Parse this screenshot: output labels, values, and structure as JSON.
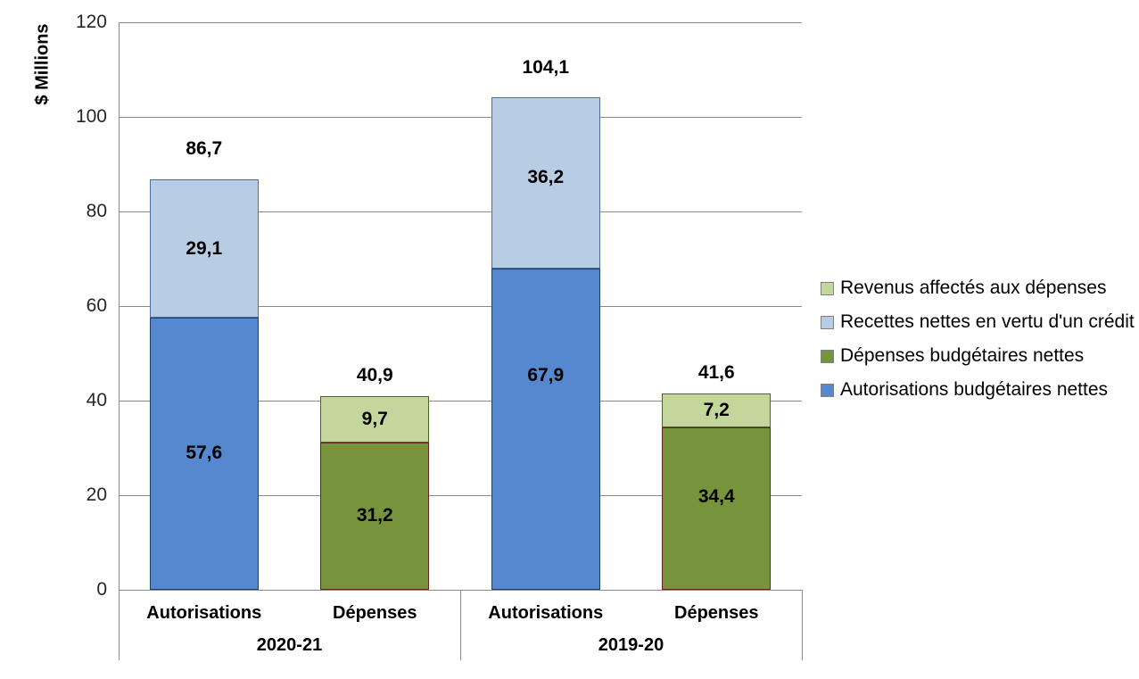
{
  "chart_data": {
    "type": "bar",
    "stacked": true,
    "ylabel": "$ Millions",
    "ylim": [
      0,
      120
    ],
    "yticks": [
      0,
      20,
      40,
      60,
      80,
      100,
      120
    ],
    "grid": true,
    "legend_position": "right",
    "groups": [
      {
        "label": "2020-21",
        "bars": [
          {
            "category": "Autorisations",
            "total": 86.7,
            "total_label": "86,7",
            "total_label_gap": 34,
            "segments": [
              {
                "series": "Autorisations budgétaires nettes",
                "value": 57.6,
                "label": "57,6"
              },
              {
                "series": "Recettes nettes en vertu d'un crédit",
                "value": 29.1,
                "label": "29,1"
              }
            ]
          },
          {
            "category": "Dépenses",
            "total": 40.9,
            "total_label": "40,9",
            "total_label_gap": 23,
            "segments": [
              {
                "series": "Dépenses budgétaires nettes",
                "value": 31.2,
                "label": "31,2"
              },
              {
                "series": "Revenus affectés aux dépenses",
                "value": 9.7,
                "label": "9,7"
              }
            ]
          }
        ]
      },
      {
        "label": "2019-20",
        "bars": [
          {
            "category": "Autorisations",
            "total": 104.1,
            "total_label": "104,1",
            "total_label_gap": 33,
            "segments": [
              {
                "series": "Autorisations budgétaires nettes",
                "value": 67.9,
                "label": "67,9",
                "label_dy": -60
              },
              {
                "series": "Recettes nettes en vertu d'un crédit",
                "value": 36.2,
                "label": "36,2",
                "label_dy": -6
              }
            ]
          },
          {
            "category": "Dépenses",
            "total": 41.6,
            "total_label": "41,6",
            "total_label_gap": 23,
            "segments": [
              {
                "series": "Dépenses budgétaires nettes",
                "value": 34.4,
                "label": "34,4",
                "label_dy": -13
              },
              {
                "series": "Revenus affectés aux dépenses",
                "value": 7.2,
                "label": "7,2"
              }
            ]
          }
        ]
      }
    ],
    "legend": [
      {
        "label": "Revenus affectés aux dépenses",
        "fill": "#c3d69b",
        "border": "#4f6228"
      },
      {
        "label": "Recettes nettes en vertu d'un crédit",
        "fill": "#b8cce4",
        "border": "#4d6e9e"
      },
      {
        "label": "Dépenses budgétaires nettes",
        "fill": "#77933c",
        "border": "#632423"
      },
      {
        "label": "Autorisations budgétaires nettes",
        "fill": "#5588cf",
        "border": "#1c3f6e"
      }
    ],
    "colors": {
      "gridline": "#8a8a8a",
      "axis": "#8a8a8a",
      "tick_text": "#262626",
      "label_text": "#000000"
    }
  }
}
